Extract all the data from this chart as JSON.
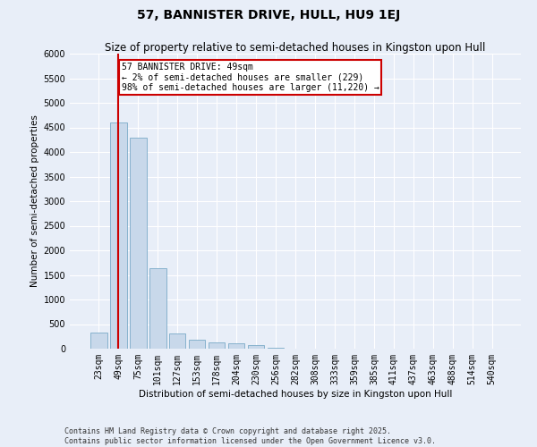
{
  "title": "57, BANNISTER DRIVE, HULL, HU9 1EJ",
  "subtitle": "Size of property relative to semi-detached houses in Kingston upon Hull",
  "xlabel": "Distribution of semi-detached houses by size in Kingston upon Hull",
  "ylabel": "Number of semi-detached properties",
  "categories": [
    "23sqm",
    "49sqm",
    "75sqm",
    "101sqm",
    "127sqm",
    "153sqm",
    "178sqm",
    "204sqm",
    "230sqm",
    "256sqm",
    "282sqm",
    "308sqm",
    "333sqm",
    "359sqm",
    "385sqm",
    "411sqm",
    "437sqm",
    "463sqm",
    "488sqm",
    "514sqm",
    "540sqm"
  ],
  "values": [
    330,
    4600,
    4300,
    1640,
    310,
    175,
    130,
    110,
    65,
    20,
    0,
    0,
    0,
    0,
    0,
    0,
    0,
    0,
    0,
    0,
    0
  ],
  "bar_color": "#c8d8ea",
  "bar_edge_color": "#7aaac8",
  "highlight_index": 1,
  "highlight_line_color": "#cc0000",
  "annotation_box_color": "#cc0000",
  "ylim": [
    0,
    6000
  ],
  "yticks": [
    0,
    500,
    1000,
    1500,
    2000,
    2500,
    3000,
    3500,
    4000,
    4500,
    5000,
    5500,
    6000
  ],
  "annotation_title": "57 BANNISTER DRIVE: 49sqm",
  "annotation_line1": "← 2% of semi-detached houses are smaller (229)",
  "annotation_line2": "98% of semi-detached houses are larger (11,220) →",
  "footer_line1": "Contains HM Land Registry data © Crown copyright and database right 2025.",
  "footer_line2": "Contains public sector information licensed under the Open Government Licence v3.0.",
  "bg_color": "#e8eef8",
  "plot_bg_color": "#e8eef8",
  "grid_color": "#ffffff",
  "title_fontsize": 10,
  "subtitle_fontsize": 8.5,
  "axis_label_fontsize": 7.5,
  "tick_fontsize": 7,
  "annotation_fontsize": 7,
  "footer_fontsize": 6
}
